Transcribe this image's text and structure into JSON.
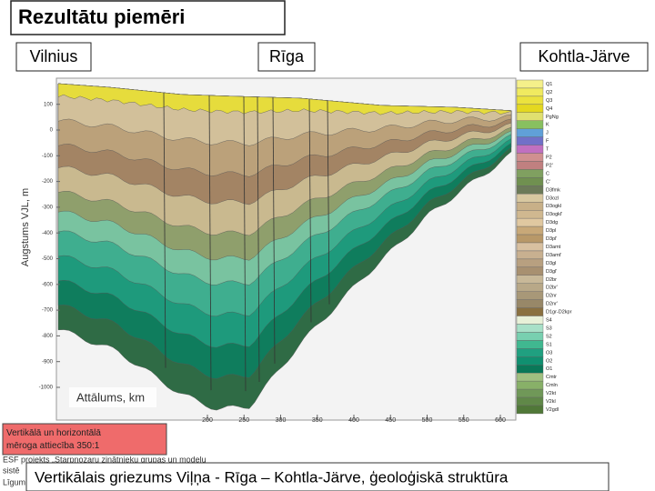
{
  "header": {
    "title": "Rezultātu piemēri"
  },
  "places": {
    "left": "Vilnius",
    "middle": "Rīga",
    "right": "Kohtla-Järve"
  },
  "figure": {
    "y_axis_label": "Augstums VJL, m",
    "y_ticks": [
      100,
      0,
      -100,
      -200,
      -300,
      -400,
      -500,
      -600,
      -700,
      -800,
      -900,
      -1000
    ],
    "x_axis_label": "Attālums, km",
    "x_ticks": [
      200,
      250,
      300,
      350,
      400,
      450,
      500,
      550,
      600
    ],
    "legend": [
      "Q1",
      "Q2",
      "Q3",
      "Q4",
      "PgNg",
      "K",
      "J",
      "F",
      "T",
      "P2",
      "P2'",
      "C",
      "C'",
      "D3fmk",
      "D3ozl",
      "D3ogkl",
      "D3ogkl'",
      "D3dg",
      "D3pl",
      "D3pl'",
      "D3amt",
      "D3amt'",
      "D3gl",
      "D3gl'",
      "D2br",
      "D2br'",
      "D2nr",
      "D2nr'",
      "D1gr-D2kpr",
      "S4",
      "S3",
      "S2",
      "S1",
      "O3",
      "O2",
      "O1",
      "Cmtr",
      "Cmln",
      "V2kt",
      "V2kl",
      "V2gdl"
    ]
  },
  "note": "Vertikālā un horizontālā mēroga attiecība 350:1",
  "footer": {
    "lines": [
      "ESF projekts „Starpnozaru zinātnieku grupas un modeļu",
      "sistē",
      "Līgum"
    ]
  },
  "caption": "Vertikālais griezums Viļņa -  Rīga – Kohtla-Järve, ģeoloģiskā struktūra"
}
